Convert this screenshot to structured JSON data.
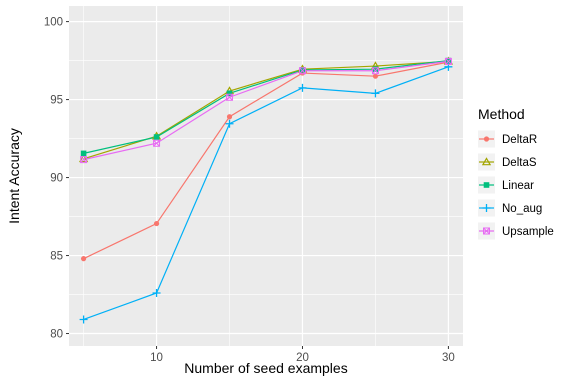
{
  "chart_data": {
    "type": "line",
    "xlabel": "Number of seed examples",
    "ylabel": "Intent Accuracy",
    "x": [
      5,
      10,
      15,
      20,
      25,
      30
    ],
    "xlim": [
      4,
      31
    ],
    "ylim": [
      79.2,
      101
    ],
    "x_ticks": [
      10,
      20,
      30
    ],
    "y_ticks": [
      80,
      85,
      90,
      95,
      100
    ],
    "grid": true,
    "background": "panel-grey",
    "legend": {
      "title": "Method",
      "placement": "right"
    },
    "series": [
      {
        "name": "DeltaR",
        "color": "#F8766D",
        "marker": "circle",
        "values": [
          84.8,
          87.05,
          93.9,
          96.7,
          96.5,
          97.4
        ]
      },
      {
        "name": "DeltaS",
        "color": "#A3A500",
        "marker": "triangle",
        "values": [
          91.2,
          92.65,
          95.55,
          96.95,
          97.15,
          97.45
        ]
      },
      {
        "name": "Linear",
        "color": "#00BF7D",
        "marker": "square",
        "values": [
          91.55,
          92.6,
          95.4,
          96.9,
          96.95,
          97.5
        ]
      },
      {
        "name": "No_aug",
        "color": "#00B0F6",
        "marker": "plus",
        "values": [
          80.9,
          82.6,
          93.45,
          95.75,
          95.4,
          97.1
        ]
      },
      {
        "name": "Upsample",
        "color": "#E76BF3",
        "marker": "boxsquare",
        "values": [
          91.15,
          92.2,
          95.15,
          96.85,
          96.85,
          97.45
        ]
      }
    ]
  },
  "colors": {
    "panel_bg": "#EBEBEB",
    "grid_major": "#FFFFFF",
    "axis_text": "#4D4D4D",
    "axis_title": "#000000"
  }
}
